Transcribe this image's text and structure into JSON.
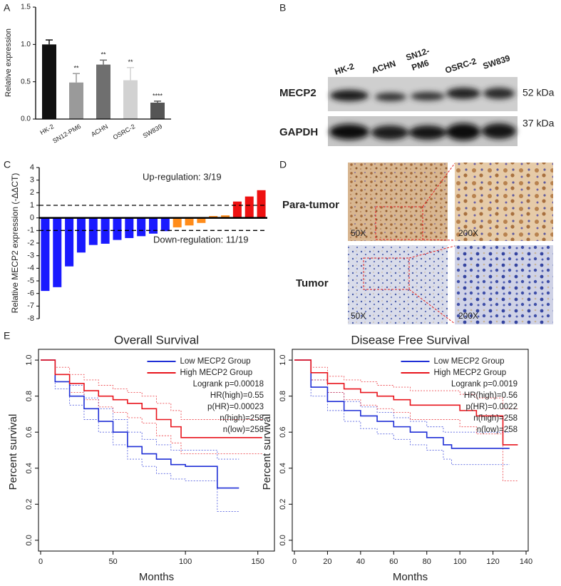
{
  "chart_data": [
    {
      "type": "bar",
      "panel_label": "A",
      "y_label": "Relative expression",
      "categories": [
        "HK-2",
        "SN12-PM6",
        "ACHN",
        "OSRC-2",
        "SW839"
      ],
      "values": [
        1.0,
        0.49,
        0.73,
        0.52,
        0.22
      ],
      "errors": [
        0.06,
        0.12,
        0.06,
        0.17,
        0.02
      ],
      "significance": [
        null,
        "**",
        "**",
        "**",
        "****"
      ],
      "colors": [
        "#111111",
        "#9a9a9a",
        "#6f6f6f",
        "#d2d2d2",
        "#555555"
      ],
      "ylim": [
        0,
        1.5
      ],
      "yticks": [
        {
          "value": 0,
          "label": "0.0"
        },
        {
          "value": 0.5,
          "label": "0.5"
        },
        {
          "value": 1,
          "label": "1.0"
        },
        {
          "value": 1.5,
          "label": "1.5"
        }
      ]
    },
    {
      "type": "bar",
      "panel_label": "C",
      "y_label": "Relative MECP2 expression (-ΔΔCT)",
      "categories": [
        null,
        null,
        null,
        null,
        null,
        null,
        null,
        null,
        null,
        null,
        null,
        null,
        null,
        null,
        null,
        null,
        null,
        null,
        null
      ],
      "values": [
        -5.8,
        -5.5,
        -3.85,
        -2.75,
        -2.15,
        -2.05,
        -1.75,
        -1.6,
        -1.45,
        -1.25,
        -1.05,
        -0.75,
        -0.6,
        -0.4,
        0.15,
        0.2,
        1.3,
        1.7,
        2.2
      ],
      "colors": [
        "#1a1aff",
        "#1a1aff",
        "#1a1aff",
        "#1a1aff",
        "#1a1aff",
        "#1a1aff",
        "#1a1aff",
        "#1a1aff",
        "#1a1aff",
        "#1a1aff",
        "#1a1aff",
        "#ff8c1a",
        "#ff8c1a",
        "#ff8c1a",
        "#ff8c1a",
        "#ff8c1a",
        "#ee1111",
        "#ee1111",
        "#ee1111"
      ],
      "thresholds": [
        1,
        -1
      ],
      "annotations": [
        {
          "text": "Up-regulation: 3/19",
          "color": "#e8262d"
        },
        {
          "text": "Down-regulation: 11/19",
          "color": "#2233cc"
        }
      ],
      "ylim": [
        -8,
        4
      ],
      "yticks": [
        -8,
        -7,
        -6,
        -5,
        -4,
        -3,
        -2,
        -1,
        0,
        1,
        2,
        3,
        4
      ]
    },
    {
      "type": "line",
      "panel_label": "E",
      "title": "Overall Survival",
      "x_label": "Months",
      "y_label": "Percent survival",
      "series": [
        {
          "name": "Low MECP2 Group",
          "color": "#1f2fd6",
          "x": [
            0,
            10,
            20,
            30,
            40,
            50,
            60,
            70,
            80,
            90,
            100,
            110,
            120,
            122,
            137
          ],
          "values": [
            1,
            0.88,
            0.8,
            0.73,
            0.66,
            0.6,
            0.52,
            0.48,
            0.45,
            0.42,
            0.41,
            0.41,
            0.41,
            0.29,
            0.29
          ],
          "lower": [
            1,
            0.84,
            0.75,
            0.67,
            0.6,
            0.53,
            0.45,
            0.41,
            0.37,
            0.34,
            0.33,
            0.33,
            0.33,
            0.16,
            0.16
          ],
          "upper": [
            1,
            0.92,
            0.86,
            0.79,
            0.73,
            0.67,
            0.6,
            0.56,
            0.53,
            0.5,
            0.5,
            0.5,
            0.5,
            0.45,
            0.45
          ]
        },
        {
          "name": "High MECP2 Group",
          "color": "#e8141c",
          "x": [
            0,
            10,
            20,
            30,
            40,
            50,
            60,
            70,
            80,
            90,
            97,
            153
          ],
          "values": [
            1,
            0.92,
            0.87,
            0.83,
            0.8,
            0.78,
            0.76,
            0.73,
            0.67,
            0.63,
            0.57,
            0.57
          ],
          "lower": [
            1,
            0.88,
            0.82,
            0.78,
            0.74,
            0.71,
            0.68,
            0.65,
            0.58,
            0.54,
            0.48,
            0.48
          ],
          "upper": [
            1,
            0.96,
            0.92,
            0.89,
            0.86,
            0.84,
            0.82,
            0.8,
            0.76,
            0.72,
            0.67,
            0.67
          ]
        }
      ],
      "annotations": [
        "Logrank p=0.00018",
        "HR(high)=0.55",
        "p(HR)=0.00023",
        "n(high)=258",
        "n(low)=258"
      ],
      "xlim": [
        0,
        160
      ],
      "xticks": [
        0,
        50,
        100,
        150
      ],
      "ylim": [
        -0.06,
        1.04
      ],
      "yticks": [
        {
          "value": 0,
          "label": "0.0"
        },
        {
          "value": 0.2,
          "label": "0.2"
        },
        {
          "value": 0.4,
          "label": "0.4"
        },
        {
          "value": 0.6,
          "label": "0.6"
        },
        {
          "value": 0.8,
          "label": "0.8"
        },
        {
          "value": 1,
          "label": "1.0"
        }
      ]
    },
    {
      "type": "line",
      "title": "Disease Free Survival",
      "x_label": "Months",
      "y_label": "Percent survival",
      "series": [
        {
          "name": "Low MECP2 Group",
          "color": "#1f2fd6",
          "x": [
            0,
            10,
            20,
            30,
            40,
            50,
            60,
            70,
            80,
            90,
            95,
            130
          ],
          "values": [
            1,
            0.85,
            0.77,
            0.72,
            0.69,
            0.66,
            0.63,
            0.6,
            0.57,
            0.53,
            0.51,
            0.51
          ],
          "lower": [
            1,
            0.8,
            0.72,
            0.66,
            0.62,
            0.59,
            0.56,
            0.53,
            0.5,
            0.45,
            0.42,
            0.42
          ],
          "upper": [
            1,
            0.89,
            0.82,
            0.77,
            0.74,
            0.71,
            0.68,
            0.66,
            0.63,
            0.6,
            0.6,
            0.6
          ]
        },
        {
          "name": "High MECP2 Group",
          "color": "#e8141c",
          "x": [
            0,
            10,
            20,
            30,
            40,
            50,
            60,
            70,
            90,
            100,
            110,
            125,
            126,
            135
          ],
          "values": [
            1,
            0.93,
            0.87,
            0.84,
            0.82,
            0.8,
            0.78,
            0.75,
            0.75,
            0.72,
            0.69,
            0.69,
            0.53,
            0.53
          ],
          "lower": [
            1,
            0.89,
            0.82,
            0.78,
            0.75,
            0.73,
            0.71,
            0.67,
            0.67,
            0.63,
            0.59,
            0.59,
            0.33,
            0.33
          ],
          "upper": [
            1,
            0.96,
            0.91,
            0.89,
            0.88,
            0.86,
            0.85,
            0.83,
            0.83,
            0.81,
            0.79,
            0.79,
            0.73,
            0.73
          ]
        }
      ],
      "annotations": [
        "Logrank p=0.0019",
        "HR(high)=0.56",
        "p(HR)=0.0022",
        "n(high)=258",
        "n(low)=258"
      ],
      "xlim": [
        0,
        140
      ],
      "xticks": [
        0,
        20,
        40,
        60,
        80,
        100,
        120,
        140
      ],
      "ylim": [
        -0.06,
        1.04
      ],
      "yticks": [
        {
          "value": 0,
          "label": "0.0"
        },
        {
          "value": 0.2,
          "label": "0.2"
        },
        {
          "value": 0.4,
          "label": "0.4"
        },
        {
          "value": 0.6,
          "label": "0.6"
        },
        {
          "value": 0.8,
          "label": "0.8"
        },
        {
          "value": 1,
          "label": "1.0"
        }
      ]
    }
  ],
  "blot": {
    "panel_label": "B",
    "lanes": [
      "HK-2",
      "ACHN",
      [
        "SN12-",
        "PM6"
      ],
      "OSRC-2",
      "SW839"
    ],
    "rows": [
      {
        "protein": "MECP2",
        "size": "52 kDa"
      },
      {
        "protein": "GAPDH",
        "size": "37 kDa"
      }
    ]
  },
  "histology": {
    "panel_label": "D",
    "rows": [
      {
        "label": "Para-tumor",
        "panels": [
          "50X",
          "200X"
        ]
      },
      {
        "label": "Tumor",
        "panels": [
          "50X",
          "200X"
        ]
      }
    ]
  }
}
